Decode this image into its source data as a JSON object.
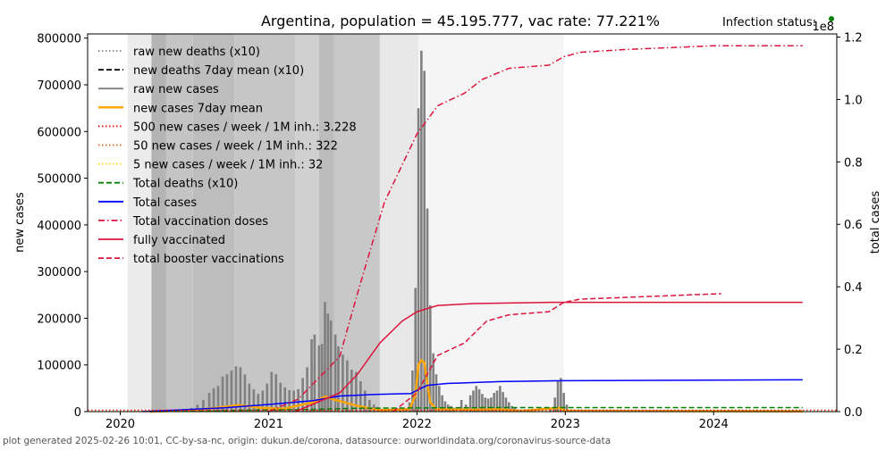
{
  "chart_data": {
    "type": "bar+line",
    "title": "Argentina, population = 45.195.777, vac rate: 77.221%",
    "status_label": "Infection status:",
    "status_color": "#008000",
    "ylabel": "new cases",
    "y2label": "total cases",
    "y2_multiplier": "1e8",
    "xlim": [
      2019.78,
      2024.83
    ],
    "ylim": [
      0,
      809000
    ],
    "y2lim": [
      0,
      1.21
    ],
    "x_ticks": [
      {
        "v": 2020,
        "label": "2020"
      },
      {
        "v": 2021,
        "label": "2021"
      },
      {
        "v": 2022,
        "label": "2022"
      },
      {
        "v": 2023,
        "label": "2023"
      },
      {
        "v": 2024,
        "label": "2024"
      }
    ],
    "y_ticks": [
      {
        "v": 0,
        "label": "0"
      },
      {
        "v": 100000,
        "label": "100000"
      },
      {
        "v": 200000,
        "label": "200000"
      },
      {
        "v": 300000,
        "label": "300000"
      },
      {
        "v": 400000,
        "label": "400000"
      },
      {
        "v": 500000,
        "label": "500000"
      },
      {
        "v": 600000,
        "label": "600000"
      },
      {
        "v": 700000,
        "label": "700000"
      },
      {
        "v": 800000,
        "label": "800000"
      }
    ],
    "y2_ticks": [
      {
        "v": 0,
        "label": "0.0"
      },
      {
        "v": 0.2,
        "label": "0.2"
      },
      {
        "v": 0.4,
        "label": "0.4"
      },
      {
        "v": 0.6,
        "label": "0.6"
      },
      {
        "v": 0.8,
        "label": "0.8"
      },
      {
        "v": 1.0,
        "label": "1.0"
      },
      {
        "v": 1.2,
        "label": "1.2"
      }
    ],
    "status_bands": [
      {
        "from": 2020.05,
        "to": 2020.21,
        "gray": "#ececec"
      },
      {
        "from": 2020.21,
        "to": 2020.31,
        "gray": "#b4b4b4"
      },
      {
        "from": 2020.31,
        "to": 2020.49,
        "gray": "#c4c4c4"
      },
      {
        "from": 2020.49,
        "to": 2020.77,
        "gray": "#bdbdbd"
      },
      {
        "from": 2020.77,
        "to": 2021.18,
        "gray": "#c6c6c6"
      },
      {
        "from": 2021.18,
        "to": 2021.34,
        "gray": "#d0d0d0"
      },
      {
        "from": 2021.34,
        "to": 2021.44,
        "gray": "#bcbcbc"
      },
      {
        "from": 2021.44,
        "to": 2021.75,
        "gray": "#c8c8c8"
      },
      {
        "from": 2021.75,
        "to": 2022.01,
        "gray": "#e8e8e8"
      },
      {
        "from": 2022.01,
        "to": 2022.99,
        "gray": "#f5f5f5"
      }
    ],
    "new_cases_bars": [
      [
        2020.4,
        2000
      ],
      [
        2020.44,
        4000
      ],
      [
        2020.48,
        8000
      ],
      [
        2020.52,
        15000
      ],
      [
        2020.56,
        25000
      ],
      [
        2020.6,
        40000
      ],
      [
        2020.63,
        50000
      ],
      [
        2020.66,
        55000
      ],
      [
        2020.69,
        75000
      ],
      [
        2020.72,
        80000
      ],
      [
        2020.75,
        88000
      ],
      [
        2020.78,
        97000
      ],
      [
        2020.81,
        95000
      ],
      [
        2020.84,
        80000
      ],
      [
        2020.87,
        60000
      ],
      [
        2020.9,
        48000
      ],
      [
        2020.93,
        38000
      ],
      [
        2020.96,
        45000
      ],
      [
        2020.99,
        60000
      ],
      [
        2021.02,
        85000
      ],
      [
        2021.05,
        80000
      ],
      [
        2021.08,
        62000
      ],
      [
        2021.11,
        52000
      ],
      [
        2021.14,
        46000
      ],
      [
        2021.17,
        45000
      ],
      [
        2021.2,
        48000
      ],
      [
        2021.23,
        72000
      ],
      [
        2021.26,
        95000
      ],
      [
        2021.29,
        155000
      ],
      [
        2021.31,
        165000
      ],
      [
        2021.34,
        142000
      ],
      [
        2021.36,
        145000
      ],
      [
        2021.38,
        235000
      ],
      [
        2021.4,
        210000
      ],
      [
        2021.42,
        195000
      ],
      [
        2021.45,
        165000
      ],
      [
        2021.47,
        140000
      ],
      [
        2021.5,
        122000
      ],
      [
        2021.53,
        110000
      ],
      [
        2021.56,
        90000
      ],
      [
        2021.59,
        85000
      ],
      [
        2021.62,
        65000
      ],
      [
        2021.65,
        45000
      ],
      [
        2021.68,
        25000
      ],
      [
        2021.71,
        15000
      ],
      [
        2021.74,
        10000
      ],
      [
        2021.77,
        6000
      ],
      [
        2021.8,
        4000
      ],
      [
        2021.83,
        3000
      ],
      [
        2021.86,
        3000
      ],
      [
        2021.89,
        3000
      ],
      [
        2021.92,
        5000
      ],
      [
        2021.95,
        20000
      ],
      [
        2021.97,
        88000
      ],
      [
        2021.99,
        265000
      ],
      [
        2022.01,
        650000
      ],
      [
        2022.03,
        773000
      ],
      [
        2022.05,
        730000
      ],
      [
        2022.07,
        435000
      ],
      [
        2022.09,
        228000
      ],
      [
        2022.11,
        125000
      ],
      [
        2022.13,
        80000
      ],
      [
        2022.15,
        55000
      ],
      [
        2022.17,
        35000
      ],
      [
        2022.19,
        22000
      ],
      [
        2022.21,
        15000
      ],
      [
        2022.23,
        12000
      ],
      [
        2022.25,
        8000
      ],
      [
        2022.3,
        25000
      ],
      [
        2022.33,
        15000
      ],
      [
        2022.36,
        35000
      ],
      [
        2022.38,
        45000
      ],
      [
        2022.4,
        55000
      ],
      [
        2022.42,
        48000
      ],
      [
        2022.44,
        38000
      ],
      [
        2022.46,
        30000
      ],
      [
        2022.48,
        28000
      ],
      [
        2022.5,
        30000
      ],
      [
        2022.52,
        40000
      ],
      [
        2022.54,
        45000
      ],
      [
        2022.56,
        55000
      ],
      [
        2022.58,
        42000
      ],
      [
        2022.6,
        30000
      ],
      [
        2022.62,
        20000
      ],
      [
        2022.64,
        12000
      ],
      [
        2022.66,
        8000
      ],
      [
        2022.9,
        8000
      ],
      [
        2022.93,
        30000
      ],
      [
        2022.95,
        65000
      ],
      [
        2022.97,
        72000
      ],
      [
        2022.99,
        40000
      ],
      [
        2023.01,
        15000
      ]
    ],
    "series": [
      {
        "name": "new cases 7day mean",
        "axis": "left",
        "color": "#ffa500",
        "style": "solid",
        "width": 2.5,
        "points": [
          [
            2020.2,
            0
          ],
          [
            2020.5,
            3000
          ],
          [
            2020.7,
            10000
          ],
          [
            2020.8,
            14000
          ],
          [
            2020.95,
            8000
          ],
          [
            2021.1,
            6000
          ],
          [
            2021.3,
            20000
          ],
          [
            2021.38,
            32000
          ],
          [
            2021.45,
            25000
          ],
          [
            2021.6,
            12000
          ],
          [
            2021.75,
            3000
          ],
          [
            2021.95,
            5000
          ],
          [
            2021.99,
            35000
          ],
          [
            2022.01,
            100000
          ],
          [
            2022.03,
            110000
          ],
          [
            2022.05,
            105000
          ],
          [
            2022.07,
            60000
          ],
          [
            2022.09,
            20000
          ],
          [
            2022.13,
            5000
          ],
          [
            2022.4,
            4000
          ],
          [
            2022.56,
            5000
          ],
          [
            2022.7,
            1500
          ],
          [
            2022.96,
            8000
          ],
          [
            2023.0,
            2000
          ],
          [
            2024.6,
            500
          ]
        ]
      },
      {
        "name": "Total deaths (x10)",
        "axis": "right",
        "color": "#008000",
        "style": "dashed",
        "width": 1.5,
        "points": [
          [
            2020.2,
            0
          ],
          [
            2020.6,
            0.002
          ],
          [
            2020.9,
            0.005
          ],
          [
            2021.3,
            0.007
          ],
          [
            2021.6,
            0.011
          ],
          [
            2022.1,
            0.012
          ],
          [
            2022.5,
            0.013
          ],
          [
            2024.6,
            0.013
          ]
        ]
      },
      {
        "name": "Total cases",
        "axis": "right",
        "color": "#0000ff",
        "style": "solid",
        "width": 1.5,
        "points": [
          [
            2020.15,
            0
          ],
          [
            2020.7,
            0.012
          ],
          [
            2021.0,
            0.023
          ],
          [
            2021.3,
            0.035
          ],
          [
            2021.48,
            0.05
          ],
          [
            2021.72,
            0.055
          ],
          [
            2021.96,
            0.058
          ],
          [
            2022.02,
            0.073
          ],
          [
            2022.07,
            0.084
          ],
          [
            2022.2,
            0.09
          ],
          [
            2022.56,
            0.096
          ],
          [
            2022.98,
            0.099
          ],
          [
            2024.6,
            0.1017
          ]
        ]
      },
      {
        "name": "Total vaccination doses",
        "axis": "right",
        "color": "#dc143c",
        "style": "dashdot",
        "width": 1.5,
        "points": [
          [
            2021.0,
            0
          ],
          [
            2021.2,
            0.04
          ],
          [
            2021.48,
            0.177
          ],
          [
            2021.6,
            0.38
          ],
          [
            2021.78,
            0.67
          ],
          [
            2022.0,
            0.89
          ],
          [
            2022.14,
            0.98
          ],
          [
            2022.32,
            1.02
          ],
          [
            2022.44,
            1.064
          ],
          [
            2022.62,
            1.1
          ],
          [
            2022.89,
            1.11
          ],
          [
            2022.99,
            1.137
          ],
          [
            2023.1,
            1.151
          ],
          [
            2023.4,
            1.16
          ],
          [
            2024.0,
            1.172
          ],
          [
            2024.6,
            1.172
          ]
        ]
      },
      {
        "name": "fully vaccinated",
        "axis": "right",
        "color": "#dc143c",
        "style": "solid",
        "width": 1.5,
        "points": [
          [
            2021.18,
            0
          ],
          [
            2021.48,
            0.06
          ],
          [
            2021.6,
            0.12
          ],
          [
            2021.75,
            0.22
          ],
          [
            2021.9,
            0.29
          ],
          [
            2022.0,
            0.32
          ],
          [
            2022.14,
            0.34
          ],
          [
            2022.38,
            0.346
          ],
          [
            2022.9,
            0.35
          ],
          [
            2024.6,
            0.35
          ]
        ]
      },
      {
        "name": "total booster vaccinations",
        "axis": "right",
        "color": "#dc143c",
        "style": "dashed",
        "width": 1.5,
        "points": [
          [
            2021.84,
            0
          ],
          [
            2022.0,
            0.06
          ],
          [
            2022.14,
            0.18
          ],
          [
            2022.32,
            0.22
          ],
          [
            2022.47,
            0.29
          ],
          [
            2022.62,
            0.31
          ],
          [
            2022.89,
            0.32
          ],
          [
            2022.99,
            0.35
          ],
          [
            2023.1,
            0.36
          ],
          [
            2023.4,
            0.366
          ],
          [
            2024.05,
            0.378
          ]
        ]
      },
      {
        "name": "500 new cases / week / 1M inh.: 3.228",
        "axis": "left",
        "color": "#ff0000",
        "style": "dotted",
        "width": 1.2,
        "points": [
          [
            2019.78,
            3228
          ],
          [
            2024.83,
            3228
          ]
        ]
      },
      {
        "name": "50 new cases / week / 1M inh.: 322",
        "axis": "left",
        "color": "#d2691e",
        "style": "dotted",
        "width": 1.2,
        "points": [
          [
            2019.78,
            322
          ],
          [
            2024.83,
            322
          ]
        ]
      },
      {
        "name": "5 new cases / week / 1M inh.: 32",
        "axis": "left",
        "color": "#ffd700",
        "style": "dotted",
        "width": 1.2,
        "points": [
          [
            2019.78,
            32
          ],
          [
            2024.83,
            32
          ]
        ]
      }
    ],
    "legend": [
      {
        "label": "raw new deaths (x10)",
        "color": "#808080",
        "style": "dotted"
      },
      {
        "label": "new deaths 7day mean (x10)",
        "color": "#000000",
        "style": "dashed"
      },
      {
        "label": "raw new cases",
        "color": "#808080",
        "style": "solid"
      },
      {
        "label": "new cases 7day mean",
        "color": "#ffa500",
        "style": "solid"
      },
      {
        "label": "500 new cases / week / 1M inh.: 3.228",
        "color": "#ff0000",
        "style": "dotted"
      },
      {
        "label": "50 new cases / week / 1M inh.: 322",
        "color": "#d2691e",
        "style": "dotted"
      },
      {
        "label": "5 new cases / week / 1M inh.: 32",
        "color": "#ffd700",
        "style": "dotted"
      },
      {
        "label": "Total deaths (x10)",
        "color": "#008000",
        "style": "dashed"
      },
      {
        "label": "Total cases",
        "color": "#0000ff",
        "style": "solid"
      },
      {
        "label": "Total vaccination doses",
        "color": "#dc143c",
        "style": "dashdot"
      },
      {
        "label": "fully vaccinated",
        "color": "#dc143c",
        "style": "solid"
      },
      {
        "label": "total booster vaccinations",
        "color": "#dc143c",
        "style": "dashed"
      }
    ],
    "legend_placement": "top-left",
    "footer": "plot generated 2025-02-26 10:01, CC-by-sa-nc, origin: dukun.de/corona, datasource: ourworldindata.org/coronavirus-source-data"
  }
}
